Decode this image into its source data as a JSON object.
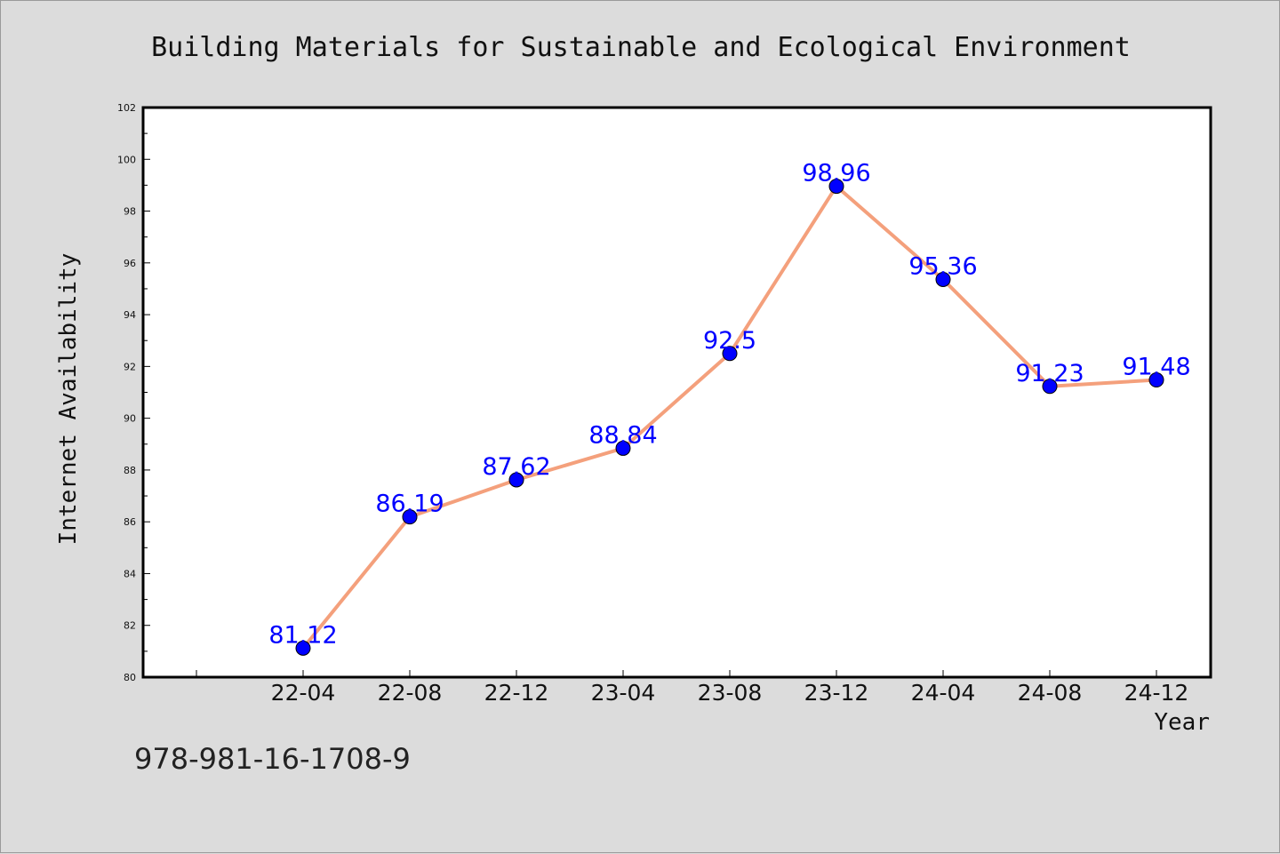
{
  "chart_data": {
    "type": "line",
    "title": "Building Materials for Sustainable and Ecological Environment",
    "xlabel": "Year",
    "ylabel": "Internet Availability",
    "categories": [
      "22-04",
      "22-08",
      "22-12",
      "23-04",
      "23-08",
      "23-12",
      "24-04",
      "24-08",
      "24-12"
    ],
    "series": [
      {
        "values": [
          81.12,
          86.19,
          87.62,
          88.84,
          92.5,
          98.96,
          95.36,
          91.23,
          91.48
        ],
        "data_labels": [
          "81.12",
          "86.19",
          "87.62",
          "88.84",
          "92.5",
          "98.96",
          "95.36",
          "91.23",
          "91.48"
        ],
        "line_color": "#f4a07c",
        "marker_color": "#0000ff",
        "label_color": "#0000ff"
      }
    ],
    "ylim": [
      80,
      102
    ],
    "yticks": [
      "80",
      "82",
      "84",
      "86",
      "88",
      "90",
      "92",
      "94",
      "96",
      "98",
      "100",
      "102"
    ],
    "grid": false,
    "legend": "none"
  },
  "footer": {
    "isbn": "978-981-16-1708-9"
  }
}
